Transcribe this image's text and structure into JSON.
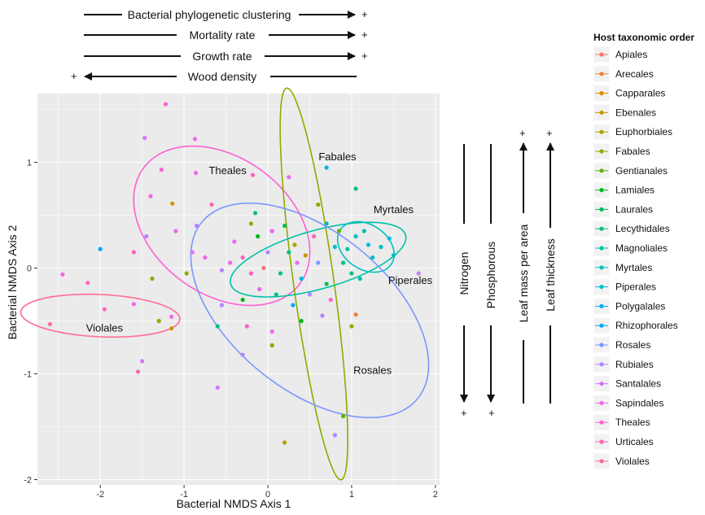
{
  "chart_data": {
    "type": "scatter",
    "title": "",
    "xlabel": "Bacterial NMDS Axis 1",
    "ylabel": "Bacterial NMDS Axis 2",
    "xlim": [
      -2.75,
      2.05
    ],
    "ylim": [
      -2.05,
      1.65
    ],
    "x_ticks": [
      -2,
      -1,
      0,
      1,
      2
    ],
    "y_ticks": [
      -2,
      -1,
      0,
      1
    ],
    "grid": true,
    "legend": {
      "title": "Host taxonomic order",
      "position": "right",
      "entries": [
        {
          "name": "Apiales",
          "color": "#F8766D"
        },
        {
          "name": "Arecales",
          "color": "#EC8239"
        },
        {
          "name": "Capparales",
          "color": "#DB8E00"
        },
        {
          "name": "Ebenales",
          "color": "#C79800"
        },
        {
          "name": "Euphorbiales",
          "color": "#AEA200"
        },
        {
          "name": "Fabales",
          "color": "#8FAA00"
        },
        {
          "name": "Gentianales",
          "color": "#64B200"
        },
        {
          "name": "Lamiales",
          "color": "#00B81B"
        },
        {
          "name": "Laurales",
          "color": "#00BD5C"
        },
        {
          "name": "Lecythidales",
          "color": "#00C085"
        },
        {
          "name": "Magnoliales",
          "color": "#00C1A7"
        },
        {
          "name": "Myrtales",
          "color": "#00BFC4"
        },
        {
          "name": "Piperales",
          "color": "#00BADE"
        },
        {
          "name": "Polygalales",
          "color": "#00B2F3"
        },
        {
          "name": "Rhizophorales",
          "color": "#00A6FF"
        },
        {
          "name": "Rosales",
          "color": "#7C96FF"
        },
        {
          "name": "Rubiales",
          "color": "#B385FF"
        },
        {
          "name": "Santalales",
          "color": "#D874FD"
        },
        {
          "name": "Sapindales",
          "color": "#EF67EB"
        },
        {
          "name": "Theales",
          "color": "#FD61D3"
        },
        {
          "name": "Urticales",
          "color": "#FF63B6"
        },
        {
          "name": "Violales",
          "color": "#FF6C91"
        }
      ]
    },
    "ellipses": [
      {
        "label": "Theales",
        "color": "#FD61D3",
        "cx": -0.55,
        "cy": 0.4,
        "rx": 1.1,
        "ry": 0.68,
        "angle": -22,
        "label_at": [
          -0.48,
          0.92
        ]
      },
      {
        "label": "Fabales",
        "color": "#8FAA00",
        "cx": 0.55,
        "cy": -0.15,
        "rx": 1.88,
        "ry": 0.24,
        "angle": -80,
        "label_at": [
          0.83,
          1.05
        ]
      },
      {
        "label": "Myrtales",
        "color": "#00C1A7",
        "cx": 0.6,
        "cy": 0.08,
        "rx": 1.07,
        "ry": 0.28,
        "angle": 12,
        "label_at": [
          1.5,
          0.55
        ]
      },
      {
        "label": "Piperales",
        "color": "#00BFC4",
        "cx": 1.17,
        "cy": 0.2,
        "rx": 0.35,
        "ry": 0.22,
        "angle": -20,
        "label_at": [
          1.7,
          -0.12
        ]
      },
      {
        "label": "Rosales",
        "color": "#7C96FF",
        "cx": 0.5,
        "cy": -0.4,
        "rx": 1.55,
        "ry": 0.8,
        "angle": -28,
        "label_at": [
          1.25,
          -0.97
        ]
      },
      {
        "label": "Violales",
        "color": "#FF6C91",
        "cx": -2.0,
        "cy": -0.45,
        "rx": 0.95,
        "ry": 0.2,
        "angle": -2,
        "label_at": [
          -1.95,
          -0.57
        ]
      }
    ],
    "points": [
      {
        "x": -1.22,
        "y": 1.55,
        "group": "Theales"
      },
      {
        "x": -1.47,
        "y": 1.23,
        "group": "Santalales"
      },
      {
        "x": -0.87,
        "y": 1.22,
        "group": "Sapindales"
      },
      {
        "x": -0.86,
        "y": 0.9,
        "group": "Sapindales"
      },
      {
        "x": -1.27,
        "y": 0.93,
        "group": "Theales"
      },
      {
        "x": -1.4,
        "y": 0.68,
        "group": "Sapindales"
      },
      {
        "x": -1.14,
        "y": 0.61,
        "group": "Capparales"
      },
      {
        "x": -0.67,
        "y": 0.6,
        "group": "Urticales"
      },
      {
        "x": -0.18,
        "y": 0.88,
        "group": "Urticales"
      },
      {
        "x": 0.25,
        "y": 0.86,
        "group": "Sapindales"
      },
      {
        "x": 0.7,
        "y": 0.95,
        "group": "Polygalales"
      },
      {
        "x": 1.05,
        "y": 0.75,
        "group": "Lecythidales"
      },
      {
        "x": 0.6,
        "y": 0.6,
        "group": "Fabales"
      },
      {
        "x": -2.0,
        "y": 0.18,
        "group": "Rhizophorales"
      },
      {
        "x": -1.6,
        "y": 0.15,
        "group": "Urticales"
      },
      {
        "x": -2.45,
        "y": -0.06,
        "group": "Sapindales"
      },
      {
        "x": -2.15,
        "y": -0.14,
        "group": "Urticales"
      },
      {
        "x": -1.38,
        "y": -0.1,
        "group": "Fabales"
      },
      {
        "x": -1.45,
        "y": 0.3,
        "group": "Rubiales"
      },
      {
        "x": -1.1,
        "y": 0.35,
        "group": "Sapindales"
      },
      {
        "x": -0.85,
        "y": 0.4,
        "group": "Rubiales"
      },
      {
        "x": -0.9,
        "y": 0.15,
        "group": "Santalales"
      },
      {
        "x": -0.97,
        "y": -0.05,
        "group": "Fabales"
      },
      {
        "x": -0.75,
        "y": 0.1,
        "group": "Sapindales"
      },
      {
        "x": -0.55,
        "y": -0.02,
        "group": "Rubiales"
      },
      {
        "x": -0.4,
        "y": 0.25,
        "group": "Sapindales"
      },
      {
        "x": -0.2,
        "y": 0.42,
        "group": "Fabales"
      },
      {
        "x": -0.12,
        "y": 0.3,
        "group": "Lamiales"
      },
      {
        "x": 0.05,
        "y": 0.35,
        "group": "Sapindales"
      },
      {
        "x": -0.15,
        "y": 0.52,
        "group": "Lecythidales"
      },
      {
        "x": 0.2,
        "y": 0.4,
        "group": "Laurales"
      },
      {
        "x": 0.32,
        "y": 0.22,
        "group": "Euphorbiales"
      },
      {
        "x": -0.3,
        "y": 0.1,
        "group": "Urticales"
      },
      {
        "x": -0.05,
        "y": 0.0,
        "group": "Apiales"
      },
      {
        "x": 0.15,
        "y": -0.05,
        "group": "Lecythidales"
      },
      {
        "x": 0.45,
        "y": 0.12,
        "group": "Ebenales"
      },
      {
        "x": 0.6,
        "y": 0.05,
        "group": "Rosales"
      },
      {
        "x": 0.8,
        "y": 0.2,
        "group": "Myrtales"
      },
      {
        "x": 0.85,
        "y": 0.35,
        "group": "Gentianales"
      },
      {
        "x": 0.95,
        "y": 0.18,
        "group": "Magnoliales"
      },
      {
        "x": 1.05,
        "y": 0.3,
        "group": "Myrtales"
      },
      {
        "x": 1.15,
        "y": 0.35,
        "group": "Magnoliales"
      },
      {
        "x": 1.2,
        "y": 0.22,
        "group": "Piperales"
      },
      {
        "x": 1.25,
        "y": 0.1,
        "group": "Myrtales"
      },
      {
        "x": 1.35,
        "y": 0.2,
        "group": "Myrtales"
      },
      {
        "x": 1.5,
        "y": 0.12,
        "group": "Myrtales"
      },
      {
        "x": 1.45,
        "y": 0.28,
        "group": "Piperales"
      },
      {
        "x": 1.8,
        "y": -0.05,
        "group": "Rubiales"
      },
      {
        "x": 1.0,
        "y": -0.05,
        "group": "Lecythidales"
      },
      {
        "x": 1.1,
        "y": -0.1,
        "group": "Magnoliales"
      },
      {
        "x": 0.7,
        "y": -0.15,
        "group": "Laurales"
      },
      {
        "x": 0.5,
        "y": -0.25,
        "group": "Rubiales"
      },
      {
        "x": 0.3,
        "y": -0.35,
        "group": "Rhizophorales"
      },
      {
        "x": 0.1,
        "y": -0.25,
        "group": "Lecythidales"
      },
      {
        "x": -0.1,
        "y": -0.2,
        "group": "Sapindales"
      },
      {
        "x": -0.3,
        "y": -0.3,
        "group": "Lamiales"
      },
      {
        "x": -0.55,
        "y": -0.35,
        "group": "Rubiales"
      },
      {
        "x": -0.6,
        "y": -0.55,
        "group": "Lecythidales"
      },
      {
        "x": -0.25,
        "y": -0.55,
        "group": "Urticales"
      },
      {
        "x": 0.05,
        "y": -0.6,
        "group": "Sapindales"
      },
      {
        "x": 0.4,
        "y": -0.5,
        "group": "Lamiales"
      },
      {
        "x": 0.65,
        "y": -0.45,
        "group": "Rubiales"
      },
      {
        "x": 1.0,
        "y": -0.55,
        "group": "Fabales"
      },
      {
        "x": 1.05,
        "y": -0.44,
        "group": "Arecales"
      },
      {
        "x": -1.6,
        "y": -0.34,
        "group": "Sapindales"
      },
      {
        "x": -1.95,
        "y": -0.39,
        "group": "Urticales"
      },
      {
        "x": -1.15,
        "y": -0.46,
        "group": "Sapindales"
      },
      {
        "x": -1.3,
        "y": -0.5,
        "group": "Fabales"
      },
      {
        "x": -1.15,
        "y": -0.57,
        "group": "Ebenales"
      },
      {
        "x": -2.6,
        "y": -0.53,
        "group": "Violales"
      },
      {
        "x": -1.5,
        "y": -0.88,
        "group": "Santalales"
      },
      {
        "x": -1.55,
        "y": -0.98,
        "group": "Urticales"
      },
      {
        "x": -0.6,
        "y": -1.13,
        "group": "Santalales"
      },
      {
        "x": -0.3,
        "y": -0.82,
        "group": "Rubiales"
      },
      {
        "x": 0.05,
        "y": -0.73,
        "group": "Fabales"
      },
      {
        "x": 0.9,
        "y": -1.4,
        "group": "Gentianales"
      },
      {
        "x": 0.8,
        "y": -1.58,
        "group": "Rubiales"
      },
      {
        "x": 0.2,
        "y": -1.65,
        "group": "Euphorbiales"
      },
      {
        "x": 0.35,
        "y": 0.05,
        "group": "Sapindales"
      },
      {
        "x": 0.25,
        "y": 0.15,
        "group": "Lecythidales"
      },
      {
        "x": 0.55,
        "y": 0.3,
        "group": "Urticales"
      },
      {
        "x": 0.7,
        "y": 0.42,
        "group": "Magnoliales"
      },
      {
        "x": 0.4,
        "y": -0.1,
        "group": "Piperales"
      },
      {
        "x": 0.9,
        "y": 0.05,
        "group": "Lecythidales"
      },
      {
        "x": 0.75,
        "y": -0.3,
        "group": "Theales"
      },
      {
        "x": -0.45,
        "y": 0.05,
        "group": "Sapindales"
      },
      {
        "x": -0.2,
        "y": -0.05,
        "group": "Urticales"
      },
      {
        "x": 0.0,
        "y": 0.15,
        "group": "Rubiales"
      }
    ]
  },
  "top_annotations": [
    {
      "label": "Bacterial phylogenetic clustering",
      "direction": "right",
      "sign": "+"
    },
    {
      "label": "Mortality rate",
      "direction": "right",
      "sign": "+"
    },
    {
      "label": "Growth rate",
      "direction": "right",
      "sign": "+"
    },
    {
      "label": "Wood density",
      "direction": "left",
      "sign": "+"
    }
  ],
  "side_annotations": [
    {
      "label": "Nitrogen",
      "direction": "down",
      "sign": "+"
    },
    {
      "label": "Phosphorous",
      "direction": "down",
      "sign": "+"
    },
    {
      "label": "Leaf mass per area",
      "direction": "up",
      "sign": "+"
    },
    {
      "label": "Leaf thickness",
      "direction": "up",
      "sign": "+"
    }
  ]
}
